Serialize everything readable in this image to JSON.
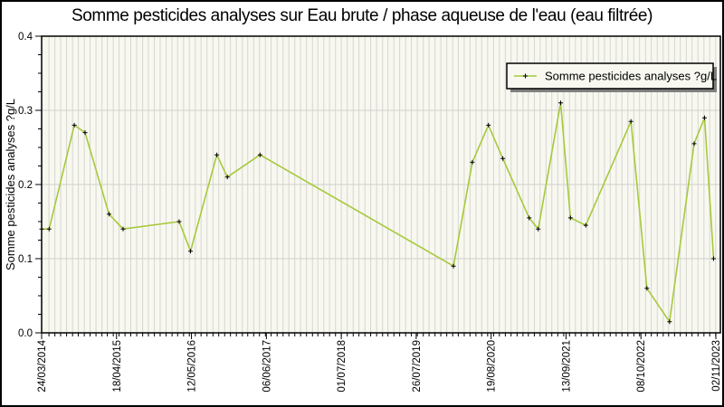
{
  "title": "Somme pesticides analyses sur Eau brute / phase aqueuse de l'eau (eau filtrée)",
  "legend": {
    "label": "Somme pesticides analyses ?g/L",
    "position": "top-right"
  },
  "y_axis": {
    "label": "Somme pesticides analyses ?g/L",
    "ticks": [
      "0.0",
      "0.1",
      "0.2",
      "0.3",
      "0.4"
    ],
    "min": 0.0,
    "max": 0.4,
    "minor_step": 0.025
  },
  "x_axis": {
    "tick_labels": [
      "24/03/2014",
      "18/04/2015",
      "12/05/2016",
      "06/06/2017",
      "01/07/2018",
      "26/07/2019",
      "19/08/2020",
      "13/09/2021",
      "08/10/2022",
      "02/11/2023"
    ],
    "start_date": "2014-03-24",
    "end_date": "2023-11-02",
    "minor_grid": "monthly"
  },
  "colors": {
    "line": "#a6c93c",
    "marker": "#000000",
    "plot_bg": "#f8f8f0",
    "stripe": "#d6d6d2",
    "hgrid": "#d0d0cc",
    "axis": "#000000",
    "legend_bg": "#f8f8f0",
    "legend_shadow": "#7f7f7f",
    "outer_bg": "#ffffff"
  },
  "chart_data": {
    "type": "line",
    "title": "Somme pesticides analyses sur Eau brute / phase aqueuse de l'eau (eau filtrée)",
    "xlabel": "",
    "ylabel": "Somme pesticides analyses ?g/L",
    "ylim": [
      0.0,
      0.4
    ],
    "grid": "vertical monthly stripes + horizontal major gridlines",
    "legend_position": "top-right inset box with shadow",
    "x_tick_labels": [
      "24/03/2014",
      "18/04/2015",
      "12/05/2016",
      "06/06/2017",
      "01/07/2018",
      "26/07/2019",
      "19/08/2020",
      "13/09/2021",
      "08/10/2022",
      "02/11/2023"
    ],
    "series": [
      {
        "name": "Somme pesticides analyses ?g/L",
        "marker": "plus",
        "points": [
          {
            "date": "2014-03-24",
            "value": 0.14
          },
          {
            "date": "2014-05-02",
            "value": 0.14
          },
          {
            "date": "2014-09-10",
            "value": 0.28
          },
          {
            "date": "2014-11-05",
            "value": 0.27
          },
          {
            "date": "2015-03-10",
            "value": 0.16
          },
          {
            "date": "2015-05-22",
            "value": 0.14
          },
          {
            "date": "2016-03-09",
            "value": 0.15
          },
          {
            "date": "2016-05-07",
            "value": 0.11
          },
          {
            "date": "2016-09-21",
            "value": 0.24
          },
          {
            "date": "2016-11-15",
            "value": 0.21
          },
          {
            "date": "2017-05-04",
            "value": 0.24
          },
          {
            "date": "2020-02-05",
            "value": 0.09
          },
          {
            "date": "2020-05-13",
            "value": 0.23
          },
          {
            "date": "2020-08-05",
            "value": 0.28
          },
          {
            "date": "2020-10-19",
            "value": 0.235
          },
          {
            "date": "2021-03-05",
            "value": 0.155
          },
          {
            "date": "2021-04-21",
            "value": 0.14
          },
          {
            "date": "2021-08-16",
            "value": 0.31
          },
          {
            "date": "2021-10-06",
            "value": 0.155
          },
          {
            "date": "2021-12-25",
            "value": 0.145
          },
          {
            "date": "2022-08-17",
            "value": 0.285
          },
          {
            "date": "2022-11-08",
            "value": 0.06
          },
          {
            "date": "2023-03-06",
            "value": 0.015
          },
          {
            "date": "2023-07-12",
            "value": 0.255
          },
          {
            "date": "2023-09-04",
            "value": 0.29
          },
          {
            "date": "2023-10-21",
            "value": 0.1
          }
        ]
      }
    ]
  }
}
